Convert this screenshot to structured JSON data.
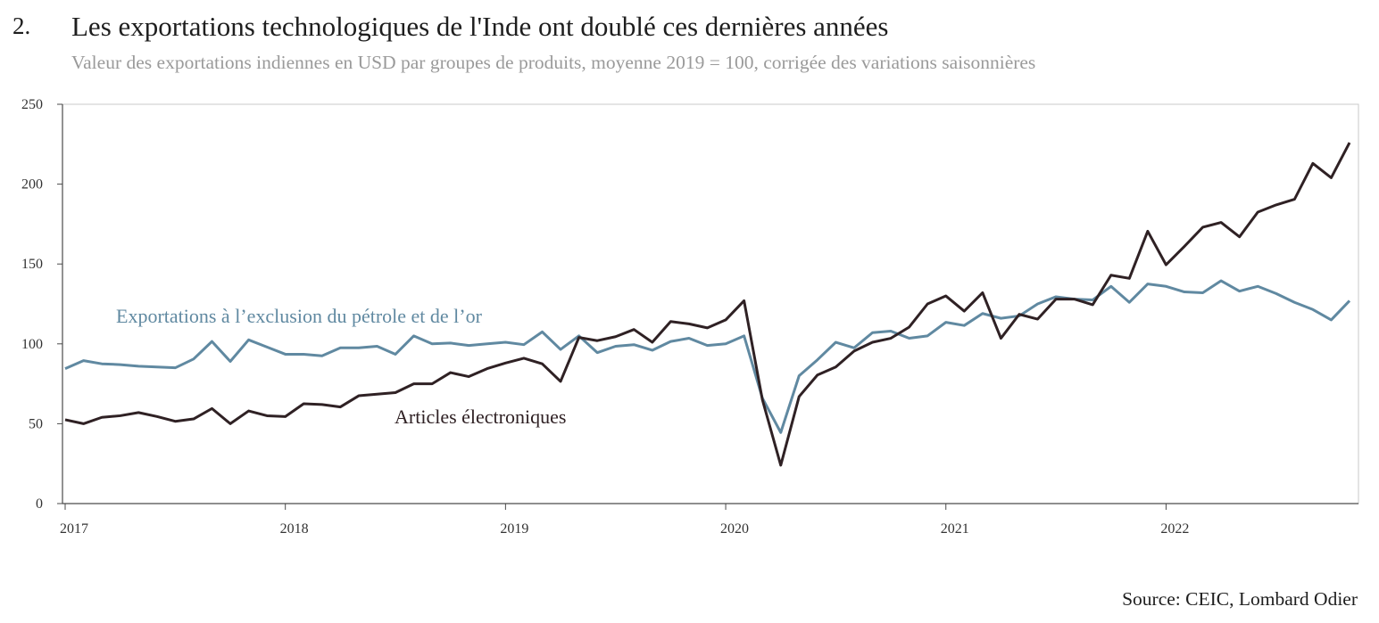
{
  "header": {
    "figure_number": "2.",
    "title": "Les exportations technologiques de l'Inde ont doublé ces dernières années",
    "subtitle": "Valeur des exportations indiennes en USD par groupes de produits, moyenne 2019 = 100, corrigée des variations saisonnières"
  },
  "footer": {
    "source": "Source: CEIC, Lombard Odier"
  },
  "chart_data": {
    "type": "line",
    "x_tick_labels": [
      "2017",
      "2018",
      "2019",
      "2020",
      "2021",
      "2022"
    ],
    "y_tick_labels": [
      "0",
      "50",
      "100",
      "150",
      "200",
      "250"
    ],
    "ylim": [
      0,
      250
    ],
    "x_start": "2017-01",
    "x_end": "2022-12",
    "grid": false,
    "colors": {
      "excl": "#6089a1",
      "elec": "#2f2124"
    },
    "series": [
      {
        "name": "Exportations à l’exclusion du pétrole et de l’or",
        "values": [
          84.5,
          89.5,
          87.5,
          87,
          86,
          85.5,
          85,
          90.5,
          101.5,
          89,
          102.5,
          98,
          93.5,
          93.5,
          92.5,
          97.5,
          97.5,
          98.5,
          93.5,
          105,
          100,
          100.5,
          99,
          100,
          101,
          99.5,
          107.5,
          96.5,
          105,
          94.5,
          98.5,
          99.5,
          96,
          101.5,
          103.5,
          99,
          100,
          105,
          66,
          44.5,
          80,
          90,
          101,
          97.5,
          107,
          108,
          103.5,
          105,
          113.5,
          111.5,
          119,
          116,
          117.5,
          125,
          129.5,
          128,
          127.5,
          136,
          126,
          137.5,
          136,
          132.5,
          132,
          139.5,
          133,
          136,
          131.5,
          126,
          121.5,
          115,
          127
        ]
      },
      {
        "name": "Articles électroniques",
        "values": [
          52.5,
          50,
          54,
          55,
          57,
          54.5,
          51.5,
          53,
          59.5,
          50,
          58,
          55,
          54.5,
          62.5,
          62,
          60.5,
          67.5,
          68.5,
          69.5,
          75,
          75,
          82,
          79.5,
          84.5,
          88,
          91,
          87.5,
          76.5,
          104,
          102,
          104.5,
          109,
          101,
          114,
          112.5,
          110,
          115,
          127,
          65,
          24,
          67,
          80.5,
          85.5,
          95.5,
          101,
          103.5,
          110.5,
          125,
          130,
          120.5,
          132,
          103.5,
          118.5,
          115.5,
          128,
          128,
          124.5,
          143,
          141,
          170.5,
          149.5,
          161,
          173,
          176,
          167,
          182.5,
          187,
          190.5,
          213,
          204,
          226
        ]
      }
    ],
    "annotations": [
      {
        "text": "Exportations à l’exclusion du pétrole et de l’or",
        "series": 0
      },
      {
        "text": "Articles électroniques",
        "series": 1
      }
    ]
  }
}
